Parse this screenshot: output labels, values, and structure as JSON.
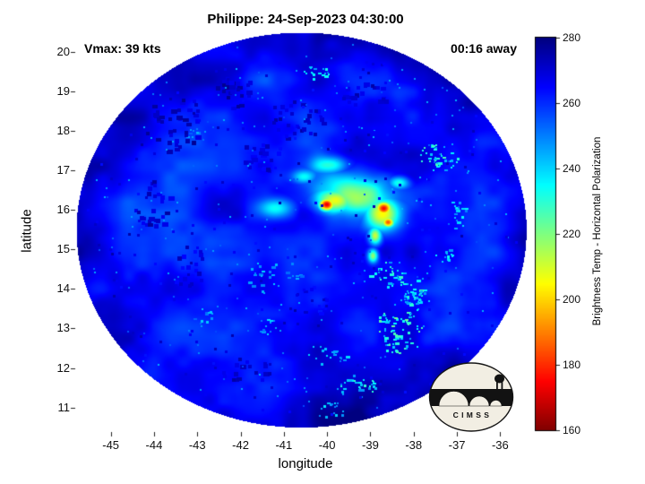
{
  "chart_data": {
    "type": "heatmap",
    "title": "Philippe: 24-Sep-2023 04:30:00",
    "annotations": {
      "top_left": "Vmax: 39 kts",
      "top_right": "00:16 away"
    },
    "xlabel": "longitude",
    "ylabel": "latitude",
    "xlim": [
      -45.8,
      -35.2
    ],
    "ylim": [
      10.4,
      20.5
    ],
    "xticks": [
      -45,
      -44,
      -43,
      -42,
      -41,
      -40,
      -39,
      -38,
      -37,
      -36
    ],
    "yticks": [
      11,
      12,
      13,
      14,
      15,
      16,
      17,
      18,
      19,
      20
    ],
    "colorbar": {
      "label": "Brightness Temp - Horizontal Polarization",
      "min": 160,
      "max": 280,
      "ticks": [
        160,
        180,
        200,
        220,
        240,
        260,
        280
      ],
      "colormap": "jet reversed (160 K = dark red, 280 K = dark blue)"
    },
    "storm": {
      "name": "Philippe",
      "datetime": "24-Sep-2023 04:30:00",
      "vmax_kts": 39,
      "time_offset": "00:16 away"
    },
    "logo_text": "C I M S S",
    "disk": {
      "center_lon": -40.6,
      "center_lat": 15.5,
      "radius_lon": 5.2,
      "radius_lat": 5.0
    },
    "background": {
      "base_temp": 252.5,
      "amp1": 15,
      "amp2": 6.5,
      "edge_darken": 11,
      "ref_temp": 262
    },
    "convective_features": [
      {
        "name": "eyewall-core",
        "lon": -40.02,
        "lat": 16.15,
        "rx": 0.3,
        "ry": 0.26,
        "temp": 163,
        "k": 2.4
      },
      {
        "name": "core-ring",
        "lon": -39.85,
        "lat": 16.25,
        "rx": 0.62,
        "ry": 0.42,
        "temp": 200,
        "k": 1.7
      },
      {
        "name": "central-canopy",
        "lon": -39.4,
        "lat": 16.4,
        "rx": 1.0,
        "ry": 0.62,
        "temp": 214,
        "k": 1.3
      },
      {
        "name": "east-cell-1",
        "lon": -38.7,
        "lat": 16.05,
        "rx": 0.28,
        "ry": 0.26,
        "temp": 176,
        "k": 2.2
      },
      {
        "name": "east-cell-2",
        "lon": -38.6,
        "lat": 15.7,
        "rx": 0.22,
        "ry": 0.2,
        "temp": 183,
        "k": 2.2
      },
      {
        "name": "east-envelope",
        "lon": -38.72,
        "lat": 15.9,
        "rx": 0.5,
        "ry": 0.5,
        "temp": 204,
        "k": 1.5
      },
      {
        "name": "south-tail-1",
        "lon": -38.9,
        "lat": 15.35,
        "rx": 0.2,
        "ry": 0.3,
        "temp": 206,
        "k": 1.8
      },
      {
        "name": "south-tail-2",
        "lon": -38.95,
        "lat": 14.85,
        "rx": 0.16,
        "ry": 0.24,
        "temp": 212,
        "k": 1.8
      },
      {
        "name": "west-band",
        "lon": -41.2,
        "lat": 16.05,
        "rx": 0.5,
        "ry": 0.28,
        "temp": 233,
        "k": 1.4
      },
      {
        "name": "north-patch",
        "lon": -39.9,
        "lat": 17.15,
        "rx": 0.5,
        "ry": 0.26,
        "temp": 230,
        "k": 1.4
      },
      {
        "name": "northeast-wisp",
        "lon": -38.35,
        "lat": 16.7,
        "rx": 0.3,
        "ry": 0.2,
        "temp": 226,
        "k": 1.5
      },
      {
        "name": "northwest-wisp",
        "lon": -40.55,
        "lat": 16.85,
        "rx": 0.35,
        "ry": 0.2,
        "temp": 238,
        "k": 1.4
      }
    ],
    "speckle_clusters": [
      {
        "lon": -38.35,
        "lat": 12.95,
        "rx": 0.55,
        "ry": 0.6,
        "n": 70,
        "t": [
          222,
          246
        ],
        "s": 2
      },
      {
        "lon": -37.95,
        "lat": 13.75,
        "rx": 0.3,
        "ry": 0.3,
        "n": 25,
        "t": [
          226,
          248
        ],
        "s": 2
      },
      {
        "lon": -39.35,
        "lat": 11.55,
        "rx": 0.45,
        "ry": 0.3,
        "n": 30,
        "t": [
          228,
          250
        ],
        "s": 2
      },
      {
        "lon": -37.45,
        "lat": 17.35,
        "rx": 0.5,
        "ry": 0.35,
        "n": 40,
        "t": [
          226,
          246
        ],
        "s": 2
      },
      {
        "lon": -40.25,
        "lat": 19.5,
        "rx": 0.3,
        "ry": 0.18,
        "n": 16,
        "t": [
          230,
          248
        ],
        "s": 2
      },
      {
        "lon": -38.6,
        "lat": 14.4,
        "rx": 0.45,
        "ry": 0.35,
        "n": 30,
        "t": [
          228,
          250
        ],
        "s": 2
      },
      {
        "lon": -38.1,
        "lat": 14.0,
        "rx": 0.35,
        "ry": 0.4,
        "n": 24,
        "t": [
          230,
          248
        ],
        "s": 2
      },
      {
        "lon": -41.3,
        "lat": 13.05,
        "rx": 0.3,
        "ry": 0.25,
        "n": 14,
        "t": [
          236,
          252
        ],
        "s": 2
      },
      {
        "lon": -40.0,
        "lat": 12.35,
        "rx": 0.5,
        "ry": 0.3,
        "n": 18,
        "t": [
          238,
          252
        ],
        "s": 2
      },
      {
        "lon": -36.95,
        "lat": 15.9,
        "rx": 0.25,
        "ry": 0.45,
        "n": 16,
        "t": [
          234,
          250
        ],
        "s": 2
      },
      {
        "lon": -41.3,
        "lat": 14.35,
        "rx": 0.7,
        "ry": 0.45,
        "n": 26,
        "t": [
          240,
          254
        ],
        "s": 2
      },
      {
        "lon": -42.85,
        "lat": 13.35,
        "rx": 0.3,
        "ry": 0.2,
        "n": 10,
        "t": [
          240,
          254
        ],
        "s": 2
      },
      {
        "lon": -39.95,
        "lat": 10.95,
        "rx": 0.45,
        "ry": 0.2,
        "n": 14,
        "t": [
          236,
          250
        ],
        "s": 2
      },
      {
        "lon": -37.3,
        "lat": 14.9,
        "rx": 0.25,
        "ry": 0.2,
        "n": 12,
        "t": [
          232,
          250
        ],
        "s": 2
      },
      {
        "lon": -43.0,
        "lat": 17.9,
        "rx": 0.3,
        "ry": 0.25,
        "n": 10,
        "t": [
          244,
          256
        ],
        "s": 2
      },
      {
        "lon": -43.5,
        "lat": 18.2,
        "rx": 0.8,
        "ry": 0.7,
        "n": 40,
        "t": [
          266,
          278
        ],
        "s": 4
      },
      {
        "lon": -42.2,
        "lat": 19.0,
        "rx": 0.6,
        "ry": 0.4,
        "n": 25,
        "t": [
          266,
          278
        ],
        "s": 4
      },
      {
        "lon": -40.8,
        "lat": 18.3,
        "rx": 0.7,
        "ry": 0.5,
        "n": 30,
        "t": [
          266,
          276
        ],
        "s": 4
      },
      {
        "lon": -44.0,
        "lat": 16.2,
        "rx": 0.5,
        "ry": 0.6,
        "n": 25,
        "t": [
          266,
          276
        ],
        "s": 4
      },
      {
        "lon": -41.5,
        "lat": 17.4,
        "rx": 0.5,
        "ry": 0.4,
        "n": 20,
        "t": [
          264,
          274
        ],
        "s": 4
      },
      {
        "lon": -39.2,
        "lat": 18.9,
        "rx": 0.6,
        "ry": 0.4,
        "n": 20,
        "t": [
          266,
          276
        ],
        "s": 4
      },
      {
        "lon": -43.2,
        "lat": 14.6,
        "rx": 0.5,
        "ry": 0.5,
        "n": 20,
        "t": [
          264,
          274
        ],
        "s": 4
      },
      {
        "lon": -41.9,
        "lat": 11.9,
        "rx": 0.6,
        "ry": 0.4,
        "n": 18,
        "t": [
          266,
          276
        ],
        "s": 4
      },
      {
        "lon": -40.5,
        "lat": 13.6,
        "rx": 0.6,
        "ry": 0.5,
        "n": 18,
        "t": [
          262,
          272
        ],
        "s": 3
      }
    ],
    "scatter_noise": {
      "bright": {
        "n": 240,
        "t": [
          244,
          257
        ],
        "s": 2
      },
      "dark": {
        "n": 200,
        "t": [
          263,
          275
        ],
        "s": 3
      }
    }
  }
}
